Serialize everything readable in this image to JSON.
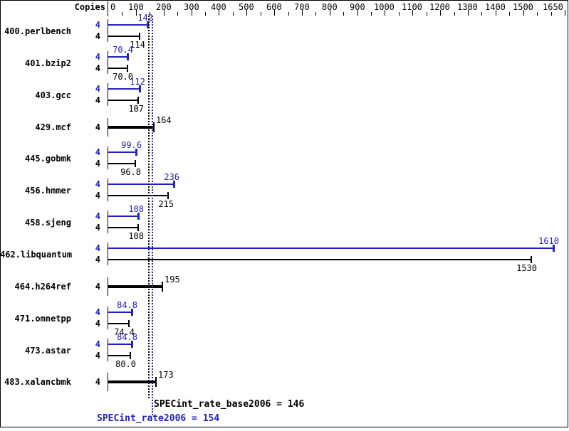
{
  "chart_data": {
    "type": "bar",
    "orientation": "horizontal",
    "copies_label": "Copies",
    "x_axis": {
      "min": 0,
      "max": 1650,
      "major_tick_labels": [
        0,
        100,
        200,
        300,
        400,
        500,
        600,
        700,
        800,
        900,
        1000,
        1100,
        1200,
        1300,
        1400,
        1500,
        1650
      ],
      "minor_step": 50,
      "grid": false
    },
    "series_colors": {
      "peak": "#2222bb",
      "base": "#000000"
    },
    "legend": "blue bar = peak (SPECint_rate2006), black bar = base (SPECint_rate_base2006), bold single bar = base and peak equal",
    "benchmarks": [
      {
        "name": "400.perlbench",
        "copies": 4,
        "peak": "142",
        "base": "114"
      },
      {
        "name": "401.bzip2",
        "copies": 4,
        "peak": "70.4",
        "base": "70.0"
      },
      {
        "name": "403.gcc",
        "copies": 4,
        "peak": "112",
        "base": "107"
      },
      {
        "name": "429.mcf",
        "copies": 4,
        "single": "164"
      },
      {
        "name": "445.gobmk",
        "copies": 4,
        "peak": "99.6",
        "base": "96.8"
      },
      {
        "name": "456.hmmer",
        "copies": 4,
        "peak": "236",
        "base": "215"
      },
      {
        "name": "458.sjeng",
        "copies": 4,
        "peak": "108",
        "base": "108"
      },
      {
        "name": "462.libquantum",
        "copies": 4,
        "peak": "1610",
        "base": "1530"
      },
      {
        "name": "464.h264ref",
        "copies": 4,
        "single": "195"
      },
      {
        "name": "471.omnetpp",
        "copies": 4,
        "peak": "84.8",
        "base": "74.4"
      },
      {
        "name": "473.astar",
        "copies": 4,
        "peak": "84.8",
        "base": "80.0"
      },
      {
        "name": "483.xalancbmk",
        "copies": 4,
        "single": "173"
      }
    ],
    "summary": {
      "base": {
        "label": "SPECint_rate_base2006 = 146",
        "value": 146,
        "color": "#000000"
      },
      "peak": {
        "label": "SPECint_rate2006 = 154",
        "value": 154,
        "color": "#2222bb"
      }
    }
  }
}
